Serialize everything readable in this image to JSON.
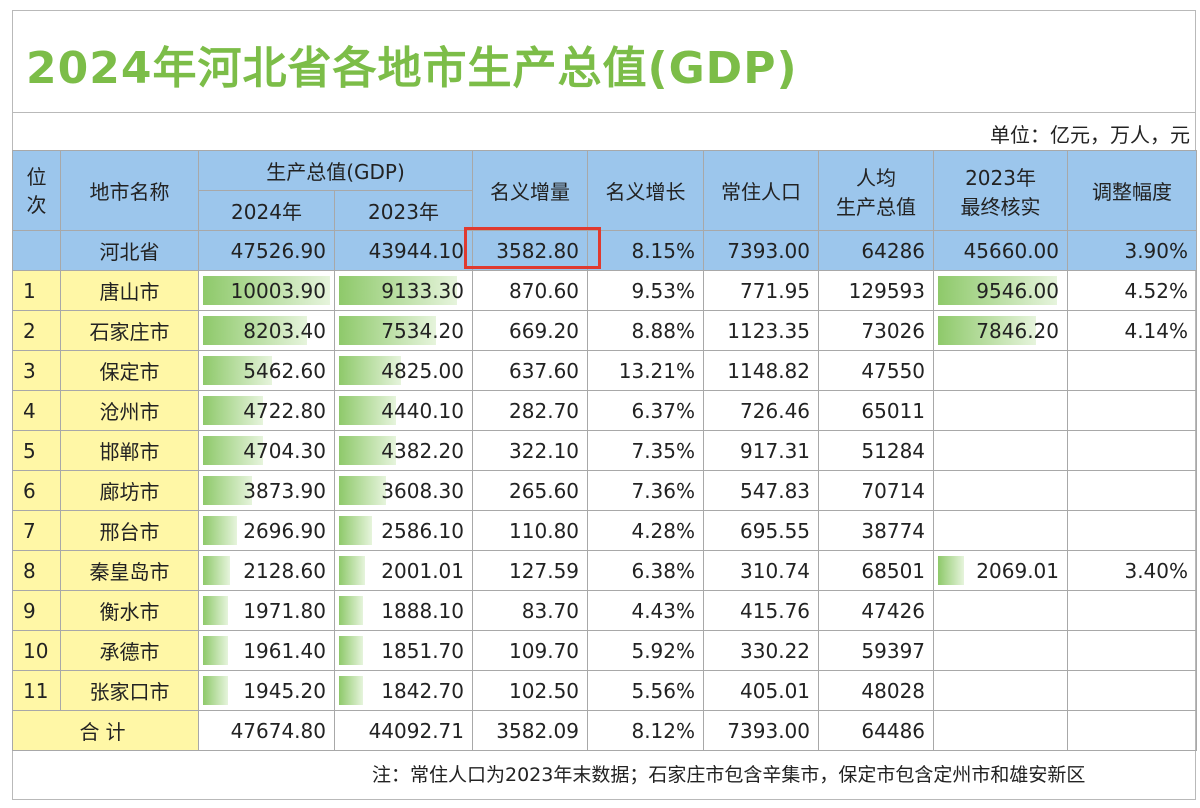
{
  "title": "2024年河北省各地市生产总值(GDP)",
  "unit_note": "单位：亿元，万人，元",
  "headers": {
    "rank": "位次",
    "city": "地市名称",
    "gdp": "生产总值(GDP)",
    "y2024": "2024年",
    "y2023": "2023年",
    "nominal_increase": "名义增量",
    "nominal_growth": "名义增长",
    "population": "常住人口",
    "per_capita_l1": "人均",
    "per_capita_l2": "生产总值",
    "final_l1": "2023年",
    "final_l2": "最终核实",
    "adjustment": "调整幅度"
  },
  "province": {
    "name": "河北省",
    "gdp2024": "47526.90",
    "gdp2023": "43944.10",
    "increase": "3582.80",
    "growth": "8.15%",
    "population": "7393.00",
    "per_capita": "64286",
    "final2023": "45660.00",
    "adjustment": "3.90%"
  },
  "cities": [
    {
      "rank": "1",
      "name": "唐山市",
      "gdp2024": "10003.90",
      "gdp2024_v": 10003.9,
      "gdp2023": "9133.30",
      "gdp2023_v": 9133.3,
      "increase": "870.60",
      "growth": "9.53%",
      "population": "771.95",
      "per_capita": "129593",
      "final2023": "9546.00",
      "final2023_v": 9546.0,
      "adjustment": "4.52%"
    },
    {
      "rank": "2",
      "name": "石家庄市",
      "gdp2024": "8203.40",
      "gdp2024_v": 8203.4,
      "gdp2023": "7534.20",
      "gdp2023_v": 7534.2,
      "increase": "669.20",
      "growth": "8.88%",
      "population": "1123.35",
      "per_capita": "73026",
      "final2023": "7846.20",
      "final2023_v": 7846.2,
      "adjustment": "4.14%"
    },
    {
      "rank": "3",
      "name": "保定市",
      "gdp2024": "5462.60",
      "gdp2024_v": 5462.6,
      "gdp2023": "4825.00",
      "gdp2023_v": 4825.0,
      "increase": "637.60",
      "growth": "13.21%",
      "population": "1148.82",
      "per_capita": "47550",
      "final2023": "",
      "adjustment": ""
    },
    {
      "rank": "4",
      "name": "沧州市",
      "gdp2024": "4722.80",
      "gdp2024_v": 4722.8,
      "gdp2023": "4440.10",
      "gdp2023_v": 4440.1,
      "increase": "282.70",
      "growth": "6.37%",
      "population": "726.46",
      "per_capita": "65011",
      "final2023": "",
      "adjustment": ""
    },
    {
      "rank": "5",
      "name": "邯郸市",
      "gdp2024": "4704.30",
      "gdp2024_v": 4704.3,
      "gdp2023": "4382.20",
      "gdp2023_v": 4382.2,
      "increase": "322.10",
      "growth": "7.35%",
      "population": "917.31",
      "per_capita": "51284",
      "final2023": "",
      "adjustment": ""
    },
    {
      "rank": "6",
      "name": "廊坊市",
      "gdp2024": "3873.90",
      "gdp2024_v": 3873.9,
      "gdp2023": "3608.30",
      "gdp2023_v": 3608.3,
      "increase": "265.60",
      "growth": "7.36%",
      "population": "547.83",
      "per_capita": "70714",
      "final2023": "",
      "adjustment": ""
    },
    {
      "rank": "7",
      "name": "邢台市",
      "gdp2024": "2696.90",
      "gdp2024_v": 2696.9,
      "gdp2023": "2586.10",
      "gdp2023_v": 2586.1,
      "increase": "110.80",
      "growth": "4.28%",
      "population": "695.55",
      "per_capita": "38774",
      "final2023": "",
      "adjustment": ""
    },
    {
      "rank": "8",
      "name": "秦皇岛市",
      "gdp2024": "2128.60",
      "gdp2024_v": 2128.6,
      "gdp2023": "2001.01",
      "gdp2023_v": 2001.01,
      "increase": "127.59",
      "growth": "6.38%",
      "population": "310.74",
      "per_capita": "68501",
      "final2023": "2069.01",
      "final2023_v": 2069.01,
      "adjustment": "3.40%"
    },
    {
      "rank": "9",
      "name": "衡水市",
      "gdp2024": "1971.80",
      "gdp2024_v": 1971.8,
      "gdp2023": "1888.10",
      "gdp2023_v": 1888.1,
      "increase": "83.70",
      "growth": "4.43%",
      "population": "415.76",
      "per_capita": "47426",
      "final2023": "",
      "adjustment": ""
    },
    {
      "rank": "10",
      "name": "承德市",
      "gdp2024": "1961.40",
      "gdp2024_v": 1961.4,
      "gdp2023": "1851.70",
      "gdp2023_v": 1851.7,
      "increase": "109.70",
      "growth": "5.92%",
      "population": "330.22",
      "per_capita": "59397",
      "final2023": "",
      "adjustment": ""
    },
    {
      "rank": "11",
      "name": "张家口市",
      "gdp2024": "1945.20",
      "gdp2024_v": 1945.2,
      "gdp2023": "1842.70",
      "gdp2023_v": 1842.7,
      "increase": "102.50",
      "growth": "5.56%",
      "population": "405.01",
      "per_capita": "48028",
      "final2023": "",
      "adjustment": ""
    }
  ],
  "total": {
    "label": "合计",
    "gdp2024": "47674.80",
    "gdp2023": "44092.71",
    "increase": "3582.09",
    "growth": "8.12%",
    "population": "7393.00",
    "per_capita": "64486"
  },
  "footnote": "注：常住人口为2023年末数据；石家庄市包含辛集市，保定市包含定州市和雄安新区",
  "colors": {
    "title": "#7cbd48",
    "header_bg": "#9cc6ec",
    "name_bg": "#fff7a6",
    "bar": "#8ec96a",
    "highlight": "#e03a2f"
  }
}
